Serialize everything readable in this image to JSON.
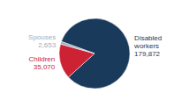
{
  "chart_data": {
    "type": "pie",
    "categories": [
      "Disabled workers",
      "Children",
      "Spouses"
    ],
    "values": [
      179872,
      35070,
      2653
    ],
    "value_labels": [
      "179,872",
      "35,070",
      "2,653"
    ],
    "colors": [
      "#1a3a5c",
      "#cc2233",
      "#a0aec0"
    ],
    "data_labels": true
  }
}
